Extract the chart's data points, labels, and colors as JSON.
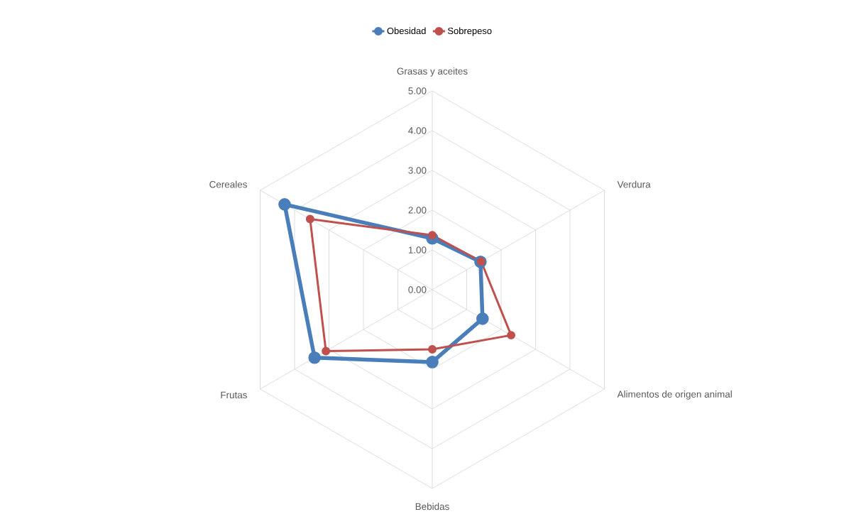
{
  "chart_data": {
    "type": "radar",
    "categories": [
      "Grasas y aceites",
      "Verdura",
      "Alimentos de origen animal",
      "Bebidas",
      "Frutas",
      "Cereales"
    ],
    "series": [
      {
        "name": "Obesidad",
        "color": "#4a7ebb",
        "values": [
          1.29,
          1.4,
          1.46,
          1.82,
          3.42,
          4.29
        ]
      },
      {
        "name": "Sobrepeso",
        "color": "#c0504d",
        "values": [
          1.37,
          1.42,
          2.29,
          1.5,
          3.09,
          3.55
        ]
      }
    ],
    "ylim": [
      0,
      5
    ],
    "yticks": [
      {
        "value": 0,
        "label": "0.00"
      },
      {
        "value": 1,
        "label": "1.00"
      },
      {
        "value": 2,
        "label": "2.00"
      },
      {
        "value": 3,
        "label": "3.00"
      },
      {
        "value": 4,
        "label": "4.00"
      },
      {
        "value": 5,
        "label": "5.00"
      }
    ],
    "grid": true,
    "legend": "top",
    "marker": "circle"
  }
}
